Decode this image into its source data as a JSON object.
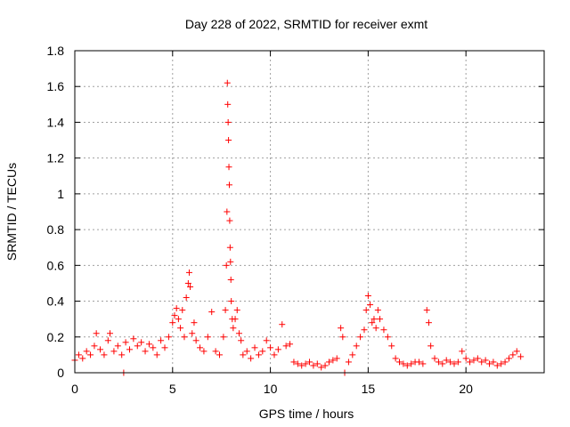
{
  "chart_data": {
    "type": "scatter",
    "title": "Day 228 of 2022, SRMTID for receiver exmt",
    "xlabel": "GPS time / hours",
    "ylabel": "SRMTID / TECUs",
    "xlim": [
      0,
      24
    ],
    "ylim": [
      0,
      1.8
    ],
    "xticks": [
      0,
      5,
      10,
      15,
      20
    ],
    "xtick_labels": [
      "0",
      "5",
      "10",
      "15",
      "20"
    ],
    "yticks": [
      0,
      0.2,
      0.4,
      0.6,
      0.8,
      1,
      1.2,
      1.4,
      1.6,
      1.8
    ],
    "ytick_labels": [
      "0",
      "0.2",
      "0.4",
      "0.6",
      "0.8",
      "1",
      "1.2",
      "1.4",
      "1.6",
      "1.8"
    ],
    "grid": true,
    "marker": "+",
    "color": "#ff0000",
    "series": [
      {
        "name": "SRMTID",
        "x": [
          0.0,
          0.2,
          0.4,
          0.6,
          0.8,
          1.0,
          1.1,
          1.3,
          1.5,
          1.7,
          1.8,
          2.0,
          2.2,
          2.4,
          2.5,
          2.6,
          2.8,
          3.0,
          3.2,
          3.4,
          3.6,
          3.8,
          4.0,
          4.2,
          4.4,
          4.6,
          4.8,
          5.0,
          5.1,
          5.2,
          5.3,
          5.4,
          5.5,
          5.6,
          5.7,
          5.8,
          5.85,
          5.9,
          6.0,
          6.1,
          6.2,
          6.4,
          6.6,
          6.8,
          7.0,
          7.2,
          7.4,
          7.6,
          7.7,
          7.75,
          7.78,
          7.8,
          7.82,
          7.84,
          7.86,
          7.88,
          7.9,
          7.92,
          7.94,
          7.96,
          7.98,
          8.0,
          8.05,
          8.1,
          8.2,
          8.3,
          8.4,
          8.5,
          8.6,
          8.8,
          9.0,
          9.2,
          9.4,
          9.6,
          9.8,
          10.0,
          10.2,
          10.4,
          10.6,
          10.8,
          11.0,
          11.2,
          11.4,
          11.6,
          11.8,
          12.0,
          12.2,
          12.4,
          12.6,
          12.8,
          13.0,
          13.2,
          13.4,
          13.6,
          13.7,
          13.8,
          14.0,
          14.2,
          14.4,
          14.6,
          14.8,
          14.9,
          15.0,
          15.1,
          15.2,
          15.3,
          15.4,
          15.5,
          15.6,
          15.8,
          16.0,
          16.2,
          16.4,
          16.6,
          16.8,
          17.0,
          17.2,
          17.4,
          17.6,
          17.8,
          18.0,
          18.1,
          18.2,
          18.4,
          18.6,
          18.8,
          19.0,
          19.2,
          19.4,
          19.6,
          19.8,
          20.0,
          20.2,
          20.4,
          20.6,
          20.8,
          21.0,
          21.2,
          21.4,
          21.6,
          21.8,
          22.0,
          22.2,
          22.4,
          22.6,
          22.8
        ],
        "y": [
          0.07,
          0.1,
          0.08,
          0.12,
          0.1,
          0.15,
          0.22,
          0.13,
          0.1,
          0.18,
          0.22,
          0.12,
          0.15,
          0.1,
          0.0,
          0.17,
          0.13,
          0.19,
          0.15,
          0.17,
          0.12,
          0.16,
          0.14,
          0.1,
          0.18,
          0.14,
          0.2,
          0.28,
          0.32,
          0.36,
          0.3,
          0.25,
          0.35,
          0.2,
          0.42,
          0.5,
          0.56,
          0.48,
          0.22,
          0.28,
          0.18,
          0.14,
          0.12,
          0.2,
          0.34,
          0.12,
          0.1,
          0.2,
          0.35,
          0.6,
          0.9,
          1.62,
          1.5,
          1.4,
          1.3,
          1.15,
          1.05,
          0.85,
          0.7,
          0.62,
          0.52,
          0.4,
          0.3,
          0.25,
          0.3,
          0.35,
          0.22,
          0.18,
          0.1,
          0.12,
          0.08,
          0.14,
          0.1,
          0.12,
          0.18,
          0.14,
          0.1,
          0.13,
          0.27,
          0.15,
          0.16,
          0.06,
          0.05,
          0.04,
          0.05,
          0.06,
          0.04,
          0.05,
          0.03,
          0.04,
          0.06,
          0.07,
          0.08,
          0.25,
          0.2,
          0.0,
          0.06,
          0.1,
          0.15,
          0.2,
          0.24,
          0.35,
          0.43,
          0.38,
          0.28,
          0.3,
          0.25,
          0.35,
          0.3,
          0.24,
          0.2,
          0.15,
          0.08,
          0.06,
          0.05,
          0.04,
          0.05,
          0.06,
          0.06,
          0.05,
          0.35,
          0.28,
          0.15,
          0.08,
          0.06,
          0.05,
          0.07,
          0.06,
          0.05,
          0.06,
          0.12,
          0.08,
          0.06,
          0.07,
          0.08,
          0.06,
          0.07,
          0.05,
          0.06,
          0.04,
          0.05,
          0.06,
          0.08,
          0.1,
          0.12,
          0.09
        ]
      }
    ]
  }
}
